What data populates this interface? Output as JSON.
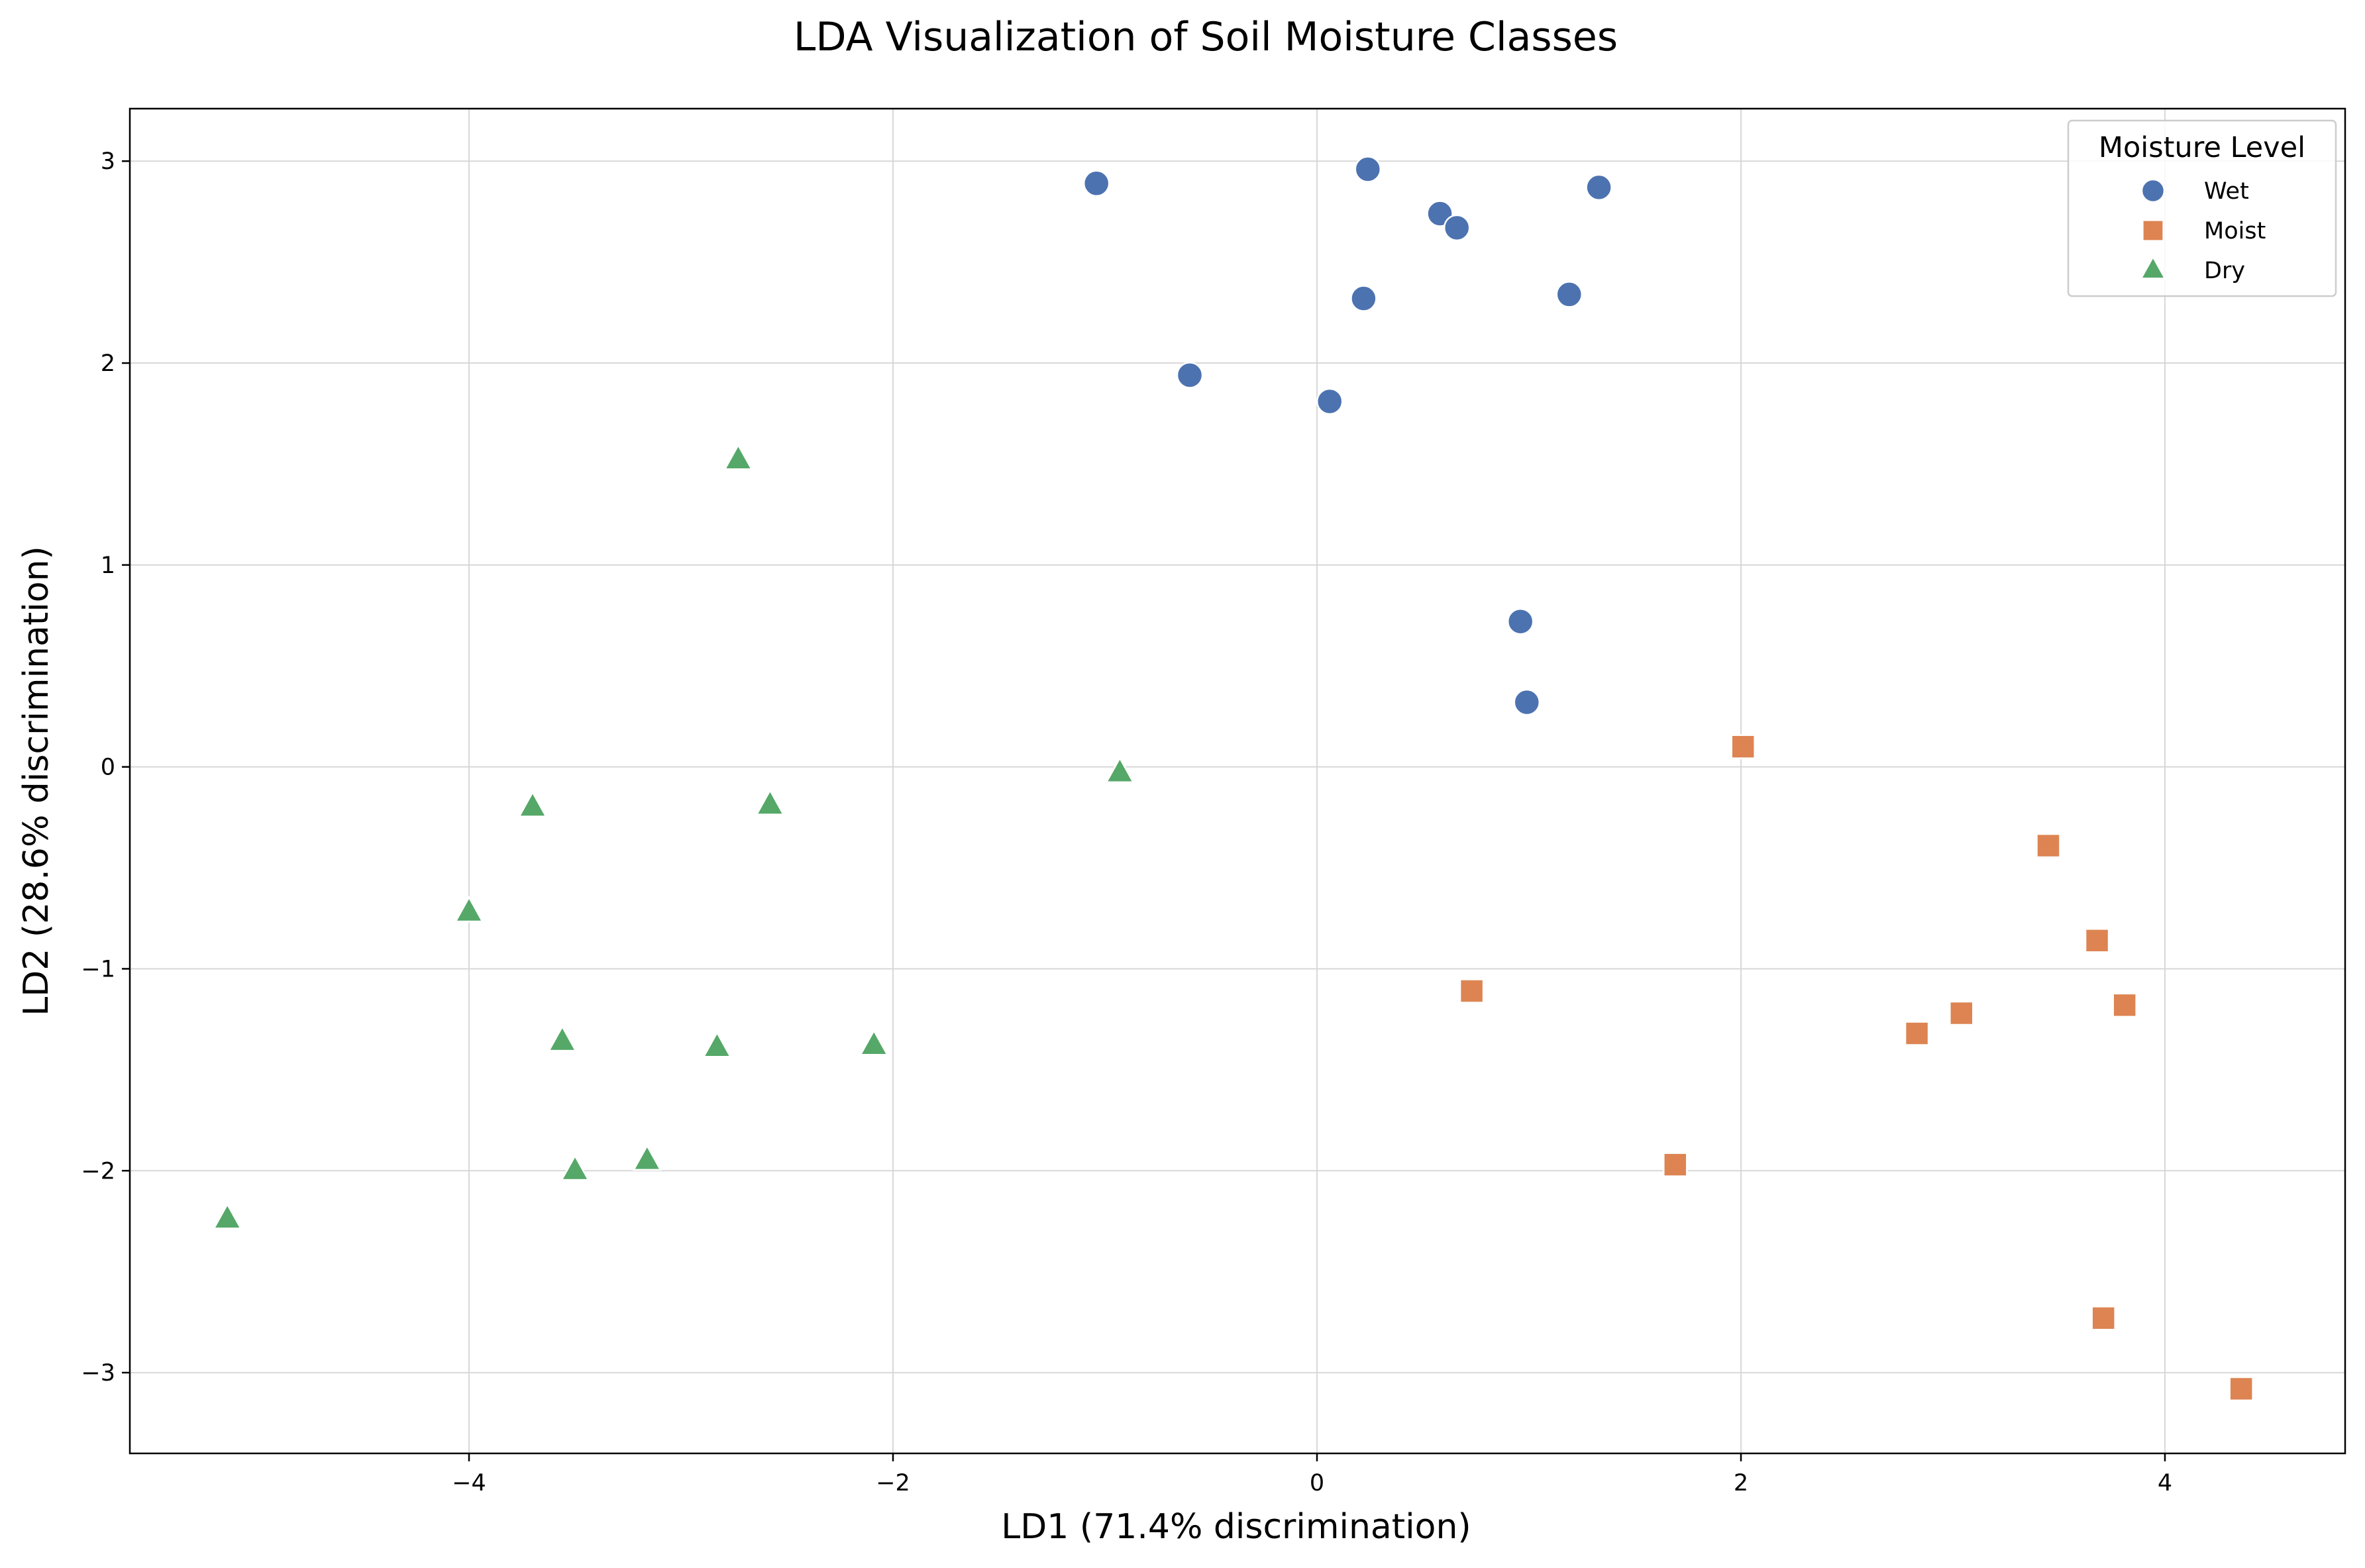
{
  "chart_data": {
    "type": "scatter",
    "title": "LDA Visualization of Soil Moisture Classes",
    "xlabel": "LD1 (71.4% discrimination)",
    "ylabel": "LD2 (28.6% discrimination)",
    "xlim": [
      -5.6,
      4.85
    ],
    "ylim": [
      -3.4,
      3.26
    ],
    "xticks": [
      -4,
      -2,
      0,
      2,
      4
    ],
    "yticks": [
      -3,
      -2,
      -1,
      0,
      1,
      2,
      3
    ],
    "xtick_labels": [
      "−4",
      "−2",
      "0",
      "2",
      "4"
    ],
    "ytick_labels": [
      "−3",
      "−2",
      "−1",
      "0",
      "1",
      "2",
      "3"
    ],
    "grid": true,
    "legend": {
      "title": "Moisture Level",
      "position": "top-right"
    },
    "series": [
      {
        "name": "Wet",
        "marker": "circle",
        "color": "#4c72b0",
        "points": [
          [
            -1.04,
            2.89
          ],
          [
            0.24,
            2.96
          ],
          [
            -0.6,
            1.94
          ],
          [
            0.58,
            2.74
          ],
          [
            0.66,
            2.67
          ],
          [
            0.22,
            2.32
          ],
          [
            1.19,
            2.34
          ],
          [
            1.33,
            2.87
          ],
          [
            0.06,
            1.81
          ],
          [
            0.96,
            0.72
          ],
          [
            0.99,
            0.32
          ]
        ]
      },
      {
        "name": "Moist",
        "marker": "square",
        "color": "#dd8452",
        "points": [
          [
            2.01,
            0.1
          ],
          [
            3.45,
            -0.39
          ],
          [
            3.68,
            -0.86
          ],
          [
            3.81,
            -1.18
          ],
          [
            2.83,
            -1.32
          ],
          [
            3.04,
            -1.22
          ],
          [
            0.73,
            -1.11
          ],
          [
            1.69,
            -1.97
          ],
          [
            3.71,
            -2.73
          ],
          [
            4.36,
            -3.08
          ]
        ]
      },
      {
        "name": "Dry",
        "marker": "triangle",
        "color": "#55a868",
        "points": [
          [
            -2.73,
            1.52
          ],
          [
            -0.93,
            -0.03
          ],
          [
            -3.7,
            -0.2
          ],
          [
            -2.58,
            -0.19
          ],
          [
            -4.0,
            -0.72
          ],
          [
            -3.56,
            -1.36
          ],
          [
            -2.83,
            -1.39
          ],
          [
            -2.09,
            -1.38
          ],
          [
            -3.5,
            -2.0
          ],
          [
            -3.16,
            -1.95
          ],
          [
            -5.14,
            -2.24
          ]
        ]
      }
    ]
  }
}
